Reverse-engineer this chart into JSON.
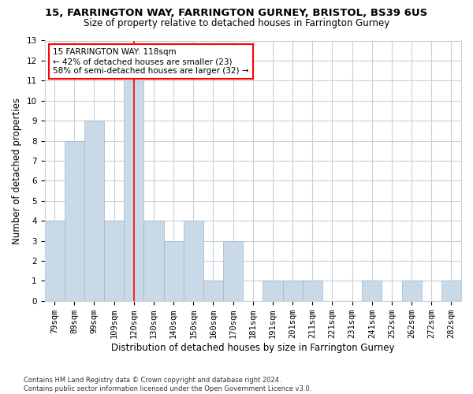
{
  "title1": "15, FARRINGTON WAY, FARRINGTON GURNEY, BRISTOL, BS39 6US",
  "title2": "Size of property relative to detached houses in Farrington Gurney",
  "xlabel": "Distribution of detached houses by size in Farrington Gurney",
  "ylabel": "Number of detached properties",
  "footer": "Contains HM Land Registry data © Crown copyright and database right 2024.\nContains public sector information licensed under the Open Government Licence v3.0.",
  "categories": [
    "79sqm",
    "89sqm",
    "99sqm",
    "109sqm",
    "120sqm",
    "130sqm",
    "140sqm",
    "150sqm",
    "160sqm",
    "170sqm",
    "181sqm",
    "191sqm",
    "201sqm",
    "211sqm",
    "221sqm",
    "231sqm",
    "241sqm",
    "252sqm",
    "262sqm",
    "272sqm",
    "282sqm"
  ],
  "values": [
    4,
    8,
    9,
    4,
    11,
    4,
    3,
    4,
    1,
    3,
    0,
    1,
    1,
    1,
    0,
    0,
    1,
    0,
    1,
    0,
    1
  ],
  "bar_color": "#c9d9e8",
  "bar_edge_color": "#a0b8cc",
  "grid_color": "#c8d0d8",
  "annotation_text": "15 FARRINGTON WAY: 118sqm\n← 42% of detached houses are smaller (23)\n58% of semi-detached houses are larger (32) →",
  "annotation_box_color": "white",
  "annotation_box_edge": "red",
  "vline_x": 4.0,
  "vline_color": "red",
  "ylim": [
    0,
    13
  ],
  "yticks": [
    0,
    1,
    2,
    3,
    4,
    5,
    6,
    7,
    8,
    9,
    10,
    11,
    12,
    13
  ],
  "background_color": "white",
  "title1_fontsize": 9.5,
  "title2_fontsize": 8.5,
  "xlabel_fontsize": 8.5,
  "ylabel_fontsize": 8.5,
  "tick_fontsize": 7.5,
  "annotation_fontsize": 7.5,
  "footer_fontsize": 6.0
}
